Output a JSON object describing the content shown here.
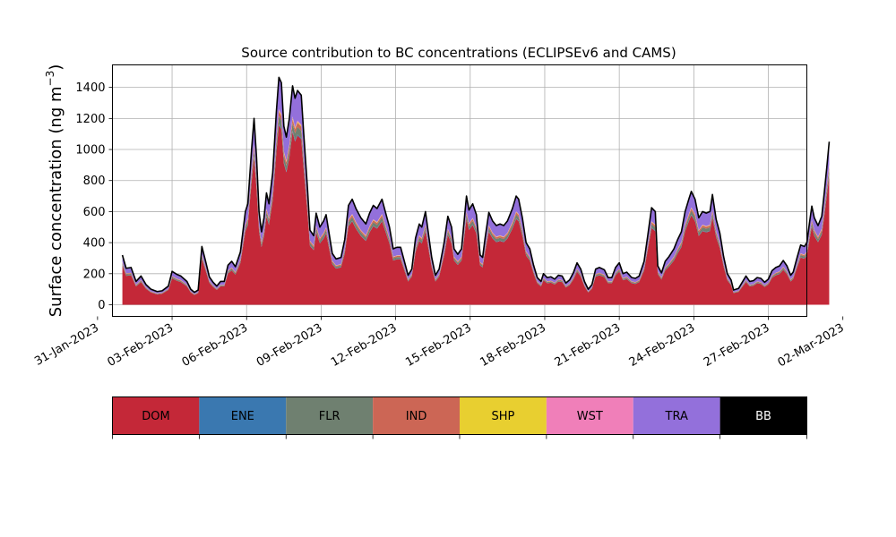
{
  "chart_data": {
    "type": "area",
    "title": "Source contribution to BC concentrations (ECLIPSEv6 and CAMS)",
    "ylabel_text": "Surface concentration (ng m",
    "ylabel_sup": "−3",
    "ylabel_close": ")",
    "xlabel": "",
    "start_date": "2023-02-01",
    "x_range_days": [
      -0.4,
      27.55
    ],
    "ylim": [
      -75,
      1545
    ],
    "yticks": [
      0,
      200,
      400,
      600,
      800,
      1000,
      1200,
      1400
    ],
    "xticks": [
      {
        "day": -1,
        "label": "31-Jan-2023"
      },
      {
        "day": 2,
        "label": "03-Feb-2023"
      },
      {
        "day": 5,
        "label": "06-Feb-2023"
      },
      {
        "day": 8,
        "label": "09-Feb-2023"
      },
      {
        "day": 11,
        "label": "12-Feb-2023"
      },
      {
        "day": 14,
        "label": "15-Feb-2023"
      },
      {
        "day": 17,
        "label": "18-Feb-2023"
      },
      {
        "day": 20,
        "label": "21-Feb-2023"
      },
      {
        "day": 23,
        "label": "24-Feb-2023"
      },
      {
        "day": 26,
        "label": "27-Feb-2023"
      },
      {
        "day": 29,
        "label": "02-Mar-2023"
      }
    ],
    "grid": true,
    "total_points": [
      [
        0.0,
        320
      ],
      [
        0.15,
        235
      ],
      [
        0.35,
        240
      ],
      [
        0.55,
        150
      ],
      [
        0.75,
        185
      ],
      [
        0.95,
        130
      ],
      [
        1.15,
        100
      ],
      [
        1.4,
        85
      ],
      [
        1.6,
        90
      ],
      [
        1.85,
        120
      ],
      [
        2.0,
        215
      ],
      [
        2.2,
        195
      ],
      [
        2.35,
        185
      ],
      [
        2.6,
        150
      ],
      [
        2.75,
        100
      ],
      [
        2.9,
        80
      ],
      [
        3.05,
        95
      ],
      [
        3.2,
        375
      ],
      [
        3.35,
        280
      ],
      [
        3.5,
        180
      ],
      [
        3.65,
        145
      ],
      [
        3.8,
        120
      ],
      [
        3.95,
        150
      ],
      [
        4.1,
        150
      ],
      [
        4.25,
        255
      ],
      [
        4.4,
        280
      ],
      [
        4.55,
        245
      ],
      [
        4.75,
        340
      ],
      [
        4.95,
        600
      ],
      [
        5.05,
        650
      ],
      [
        5.2,
        1000
      ],
      [
        5.3,
        1200
      ],
      [
        5.4,
        950
      ],
      [
        5.5,
        600
      ],
      [
        5.6,
        470
      ],
      [
        5.7,
        560
      ],
      [
        5.8,
        720
      ],
      [
        5.9,
        650
      ],
      [
        6.05,
        850
      ],
      [
        6.2,
        1250
      ],
      [
        6.3,
        1465
      ],
      [
        6.4,
        1430
      ],
      [
        6.5,
        1150
      ],
      [
        6.6,
        1080
      ],
      [
        6.72,
        1200
      ],
      [
        6.85,
        1410
      ],
      [
        6.95,
        1330
      ],
      [
        7.05,
        1380
      ],
      [
        7.2,
        1350
      ],
      [
        7.3,
        1100
      ],
      [
        7.45,
        750
      ],
      [
        7.55,
        480
      ],
      [
        7.7,
        445
      ],
      [
        7.8,
        590
      ],
      [
        7.95,
        500
      ],
      [
        8.1,
        540
      ],
      [
        8.2,
        580
      ],
      [
        8.3,
        480
      ],
      [
        8.45,
        330
      ],
      [
        8.6,
        295
      ],
      [
        8.8,
        305
      ],
      [
        8.95,
        420
      ],
      [
        9.1,
        640
      ],
      [
        9.25,
        680
      ],
      [
        9.4,
        620
      ],
      [
        9.6,
        560
      ],
      [
        9.8,
        520
      ],
      [
        9.95,
        590
      ],
      [
        10.1,
        640
      ],
      [
        10.25,
        620
      ],
      [
        10.45,
        680
      ],
      [
        10.6,
        590
      ],
      [
        10.75,
        500
      ],
      [
        10.9,
        360
      ],
      [
        11.05,
        370
      ],
      [
        11.2,
        370
      ],
      [
        11.35,
        280
      ],
      [
        11.5,
        190
      ],
      [
        11.65,
        230
      ],
      [
        11.8,
        430
      ],
      [
        11.95,
        520
      ],
      [
        12.05,
        500
      ],
      [
        12.2,
        600
      ],
      [
        12.3,
        480
      ],
      [
        12.45,
        305
      ],
      [
        12.6,
        190
      ],
      [
        12.75,
        230
      ],
      [
        12.95,
        400
      ],
      [
        13.1,
        570
      ],
      [
        13.25,
        500
      ],
      [
        13.35,
        360
      ],
      [
        13.5,
        325
      ],
      [
        13.65,
        360
      ],
      [
        13.85,
        700
      ],
      [
        13.95,
        610
      ],
      [
        14.1,
        650
      ],
      [
        14.25,
        580
      ],
      [
        14.4,
        320
      ],
      [
        14.5,
        305
      ],
      [
        14.6,
        430
      ],
      [
        14.75,
        595
      ],
      [
        14.9,
        540
      ],
      [
        15.05,
        510
      ],
      [
        15.2,
        520
      ],
      [
        15.35,
        510
      ],
      [
        15.5,
        540
      ],
      [
        15.7,
        620
      ],
      [
        15.85,
        700
      ],
      [
        15.95,
        680
      ],
      [
        16.1,
        560
      ],
      [
        16.25,
        400
      ],
      [
        16.4,
        360
      ],
      [
        16.55,
        255
      ],
      [
        16.7,
        175
      ],
      [
        16.85,
        150
      ],
      [
        16.95,
        200
      ],
      [
        17.1,
        175
      ],
      [
        17.25,
        180
      ],
      [
        17.4,
        165
      ],
      [
        17.55,
        190
      ],
      [
        17.7,
        185
      ],
      [
        17.85,
        140
      ],
      [
        18.0,
        160
      ],
      [
        18.15,
        205
      ],
      [
        18.3,
        270
      ],
      [
        18.45,
        230
      ],
      [
        18.6,
        150
      ],
      [
        18.75,
        100
      ],
      [
        18.9,
        130
      ],
      [
        19.05,
        230
      ],
      [
        19.2,
        240
      ],
      [
        19.4,
        225
      ],
      [
        19.55,
        175
      ],
      [
        19.7,
        175
      ],
      [
        19.85,
        240
      ],
      [
        20.0,
        270
      ],
      [
        20.15,
        200
      ],
      [
        20.3,
        210
      ],
      [
        20.5,
        175
      ],
      [
        20.65,
        170
      ],
      [
        20.8,
        185
      ],
      [
        21.0,
        280
      ],
      [
        21.15,
        450
      ],
      [
        21.3,
        625
      ],
      [
        21.45,
        600
      ],
      [
        21.55,
        250
      ],
      [
        21.7,
        205
      ],
      [
        21.85,
        280
      ],
      [
        22.0,
        310
      ],
      [
        22.2,
        360
      ],
      [
        22.35,
        420
      ],
      [
        22.5,
        470
      ],
      [
        22.65,
        600
      ],
      [
        22.8,
        680
      ],
      [
        22.9,
        730
      ],
      [
        23.05,
        680
      ],
      [
        23.2,
        560
      ],
      [
        23.35,
        600
      ],
      [
        23.5,
        590
      ],
      [
        23.65,
        600
      ],
      [
        23.75,
        710
      ],
      [
        23.9,
        550
      ],
      [
        24.05,
        460
      ],
      [
        24.2,
        310
      ],
      [
        24.35,
        200
      ],
      [
        24.5,
        160
      ],
      [
        24.6,
        95
      ],
      [
        24.8,
        105
      ],
      [
        24.95,
        145
      ],
      [
        25.1,
        185
      ],
      [
        25.25,
        150
      ],
      [
        25.4,
        155
      ],
      [
        25.55,
        175
      ],
      [
        25.7,
        170
      ],
      [
        25.85,
        145
      ],
      [
        26.0,
        165
      ],
      [
        26.15,
        220
      ],
      [
        26.3,
        240
      ],
      [
        26.45,
        250
      ],
      [
        26.6,
        285
      ],
      [
        26.75,
        250
      ],
      [
        26.9,
        190
      ],
      [
        27.0,
        210
      ],
      [
        27.15,
        300
      ],
      [
        27.3,
        385
      ],
      [
        27.45,
        375
      ],
      [
        27.55,
        400
      ],
      [
        27.65,
        520
      ],
      [
        27.75,
        635
      ],
      [
        27.85,
        560
      ],
      [
        28.0,
        510
      ],
      [
        28.15,
        570
      ],
      [
        28.25,
        720
      ],
      [
        28.35,
        880
      ],
      [
        28.45,
        1050
      ]
    ],
    "source_fractions": [
      {
        "name": "DOM",
        "fraction": 0.79,
        "color": "#c42838"
      },
      {
        "name": "ENE",
        "fraction": 0.005,
        "color": "#3a78b0"
      },
      {
        "name": "FLR",
        "fraction": 0.035,
        "color": "#6f8070"
      },
      {
        "name": "IND",
        "fraction": 0.02,
        "color": "#cc6655"
      },
      {
        "name": "SHP",
        "fraction": 0.005,
        "color": "#e8cf30"
      },
      {
        "name": "WST",
        "fraction": 0.005,
        "color": "#f07fb9"
      },
      {
        "name": "TRA",
        "fraction": 0.14,
        "color": "#9370db"
      }
    ],
    "total_line": {
      "name": "BB",
      "color": "#000000"
    }
  },
  "legend": [
    {
      "label": "DOM",
      "color": "#c42838",
      "text_color": "#000000"
    },
    {
      "label": "ENE",
      "color": "#3a78b0",
      "text_color": "#000000"
    },
    {
      "label": "FLR",
      "color": "#6f8070",
      "text_color": "#000000"
    },
    {
      "label": "IND",
      "color": "#cc6655",
      "text_color": "#000000"
    },
    {
      "label": "SHP",
      "color": "#e8cf30",
      "text_color": "#000000"
    },
    {
      "label": "WST",
      "color": "#f07fb9",
      "text_color": "#000000"
    },
    {
      "label": "TRA",
      "color": "#9370db",
      "text_color": "#000000"
    },
    {
      "label": "BB",
      "color": "#000000",
      "text_color": "#ffffff"
    }
  ]
}
